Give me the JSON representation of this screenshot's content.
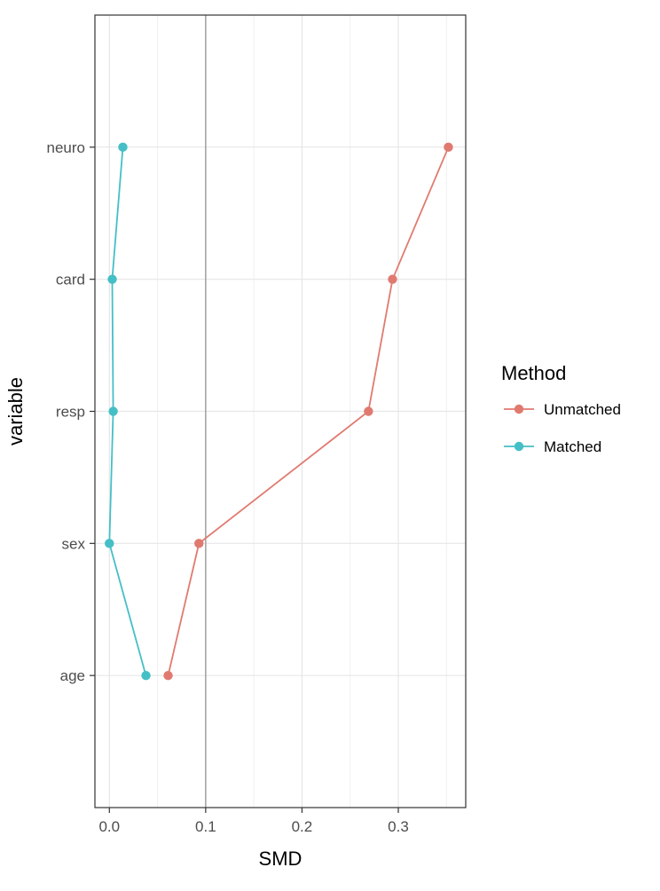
{
  "chart_data": {
    "type": "line",
    "title": "",
    "xlabel": "SMD",
    "ylabel": "variable",
    "categories": [
      "age",
      "sex",
      "resp",
      "card",
      "neuro"
    ],
    "xlim": [
      -0.015,
      0.37
    ],
    "x_ticks": [
      0.0,
      0.1,
      0.2,
      0.3
    ],
    "x_tick_labels": [
      "0.0",
      "0.1",
      "0.2",
      "0.3"
    ],
    "reference_line": 0.1,
    "grid": true,
    "legend": {
      "title": "Method",
      "position": "right"
    },
    "series": [
      {
        "name": "Unmatched",
        "color": "#E07A70",
        "values": [
          0.061,
          0.093,
          0.269,
          0.294,
          0.352
        ]
      },
      {
        "name": "Matched",
        "color": "#45BFC6",
        "values": [
          0.038,
          0.0,
          0.004,
          0.003,
          0.014
        ]
      }
    ]
  }
}
